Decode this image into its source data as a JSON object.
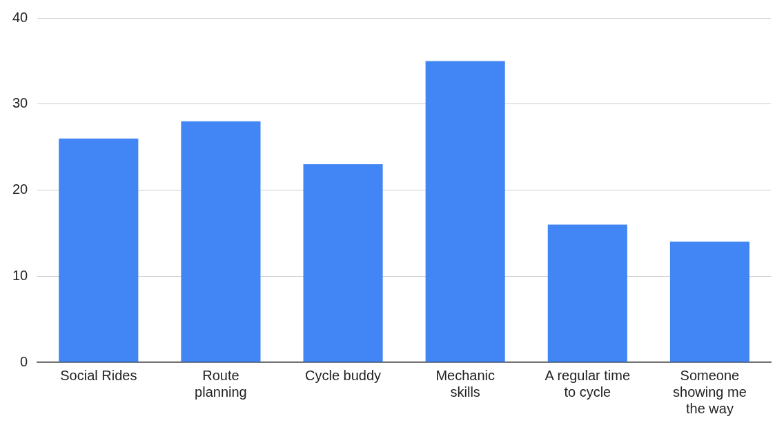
{
  "chart_data": {
    "type": "bar",
    "categories": [
      "Social Rides",
      "Route planning",
      "Cycle buddy",
      "Mechanic skills",
      "A regular time to cycle",
      "Someone showing me the way"
    ],
    "values": [
      26,
      28,
      23,
      35,
      16,
      14
    ],
    "color": "#4285f4",
    "ylim": [
      0,
      40
    ],
    "yticks": [
      0,
      10,
      20,
      30,
      40
    ],
    "grid": "y",
    "legend": false
  }
}
